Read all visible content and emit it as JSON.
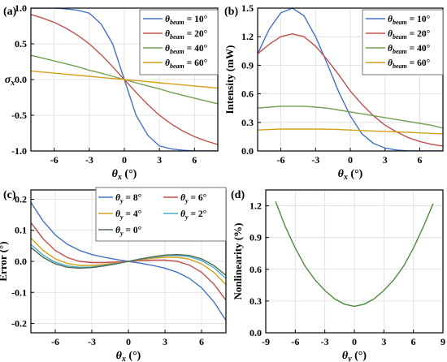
{
  "chart_data": [
    {
      "type": "line",
      "panel_label": "(a)",
      "xlabel_main": "θ",
      "xlabel_sub": "x",
      "xlabel_unit": " (°)",
      "ylabel_main": "σ",
      "ylabel_sub": "x",
      "xlim": [
        -8,
        8
      ],
      "ylim": [
        -1.0,
        1.0
      ],
      "xticks": [
        -6,
        -3,
        0,
        3,
        6
      ],
      "yticks": [
        -1.0,
        -0.5,
        0.0,
        0.5,
        1.0
      ],
      "ytick_labels": [
        "-1.0",
        "-0.5",
        "0.0",
        "0.5",
        "1.0"
      ],
      "grid": true,
      "legend_position": "top-right",
      "legend_prefix": "θ",
      "legend_sub": "beam",
      "series": [
        {
          "name": " = 10°",
          "color": "#4472c4",
          "x": [
            -8,
            -7,
            -6,
            -5,
            -4,
            -3,
            -2,
            -1,
            0,
            1,
            2,
            3,
            4,
            5,
            6,
            7,
            8
          ],
          "values": [
            1.0,
            1.0,
            1.0,
            0.99,
            0.97,
            0.93,
            0.78,
            0.5,
            0.0,
            -0.5,
            -0.78,
            -0.93,
            -0.97,
            -0.99,
            -1.0,
            -1.0,
            -1.0
          ]
        },
        {
          "name": " = 20°",
          "color": "#c0504d",
          "x": [
            -8,
            -7,
            -6,
            -5,
            -4,
            -3,
            -2,
            -1,
            0,
            1,
            2,
            3,
            4,
            5,
            6,
            7,
            8
          ],
          "values": [
            0.91,
            0.86,
            0.8,
            0.72,
            0.62,
            0.5,
            0.35,
            0.18,
            0.0,
            -0.18,
            -0.35,
            -0.5,
            -0.62,
            -0.72,
            -0.8,
            -0.86,
            -0.91
          ]
        },
        {
          "name": " = 40°",
          "color": "#70a050",
          "x": [
            -8,
            -7,
            -6,
            -5,
            -4,
            -3,
            -2,
            -1,
            0,
            1,
            2,
            3,
            4,
            5,
            6,
            7,
            8
          ],
          "values": [
            0.34,
            0.3,
            0.26,
            0.22,
            0.18,
            0.13,
            0.09,
            0.045,
            0.0,
            -0.045,
            -0.09,
            -0.13,
            -0.18,
            -0.22,
            -0.26,
            -0.3,
            -0.34
          ]
        },
        {
          "name": " = 60°",
          "color": "#d4a017",
          "x": [
            -8,
            -7,
            -6,
            -5,
            -4,
            -3,
            -2,
            -1,
            0,
            1,
            2,
            3,
            4,
            5,
            6,
            7,
            8
          ],
          "values": [
            0.12,
            0.105,
            0.09,
            0.075,
            0.06,
            0.045,
            0.03,
            0.015,
            0.0,
            -0.015,
            -0.03,
            -0.045,
            -0.06,
            -0.075,
            -0.09,
            -0.105,
            -0.12
          ]
        }
      ]
    },
    {
      "type": "line",
      "panel_label": "(b)",
      "xlabel_main": "θ",
      "xlabel_sub": "x",
      "xlabel_unit": " (°)",
      "ylabel": "Intensity (mW)",
      "xlim": [
        -8,
        8
      ],
      "ylim": [
        0.0,
        1.5
      ],
      "xticks": [
        -6,
        -3,
        0,
        3,
        6
      ],
      "yticks": [
        0.0,
        0.3,
        0.6,
        0.9,
        1.2,
        1.5
      ],
      "ytick_labels": [
        "0.0",
        "0.3",
        "0.6",
        "0.9",
        "1.2",
        "1.5"
      ],
      "grid": true,
      "legend_position": "top-right",
      "legend_prefix": "θ",
      "legend_sub": "beam",
      "series": [
        {
          "name": " = 10°",
          "color": "#4472c4",
          "x": [
            -8,
            -7,
            -6,
            -5,
            -4,
            -3,
            -2,
            -1,
            0,
            1,
            2,
            3,
            4,
            5,
            6,
            7,
            8
          ],
          "values": [
            1.02,
            1.28,
            1.45,
            1.5,
            1.42,
            1.2,
            0.92,
            0.62,
            0.37,
            0.18,
            0.08,
            0.03,
            0.01,
            0.0,
            0.0,
            0.0,
            0.0
          ]
        },
        {
          "name": " = 20°",
          "color": "#c0504d",
          "x": [
            -8,
            -7,
            -6,
            -5,
            -4,
            -3,
            -2,
            -1,
            0,
            1,
            2,
            3,
            4,
            5,
            6,
            7,
            8
          ],
          "values": [
            1.02,
            1.12,
            1.2,
            1.23,
            1.2,
            1.1,
            0.96,
            0.8,
            0.63,
            0.49,
            0.37,
            0.27,
            0.2,
            0.14,
            0.1,
            0.07,
            0.05
          ]
        },
        {
          "name": " = 40°",
          "color": "#70a050",
          "x": [
            -8,
            -7,
            -6,
            -5,
            -4,
            -3,
            -2,
            -1,
            0,
            1,
            2,
            3,
            4,
            5,
            6,
            7,
            8
          ],
          "values": [
            0.45,
            0.46,
            0.47,
            0.47,
            0.47,
            0.46,
            0.45,
            0.43,
            0.41,
            0.39,
            0.37,
            0.35,
            0.33,
            0.31,
            0.29,
            0.27,
            0.24
          ]
        },
        {
          "name": " = 60°",
          "color": "#d4a017",
          "x": [
            -8,
            -7,
            -6,
            -5,
            -4,
            -3,
            -2,
            -1,
            0,
            1,
            2,
            3,
            4,
            5,
            6,
            7,
            8
          ],
          "values": [
            0.22,
            0.225,
            0.23,
            0.23,
            0.23,
            0.23,
            0.228,
            0.225,
            0.22,
            0.215,
            0.21,
            0.205,
            0.2,
            0.195,
            0.19,
            0.185,
            0.18
          ]
        }
      ]
    },
    {
      "type": "line",
      "panel_label": "(c)",
      "xlabel_main": "θ",
      "xlabel_sub": "x",
      "xlabel_unit": " (°)",
      "ylabel": "Error (°)",
      "xlim": [
        -8,
        8
      ],
      "ylim": [
        -0.23,
        0.23
      ],
      "xticks": [
        -6,
        -3,
        0,
        3,
        6
      ],
      "yticks": [
        -0.2,
        -0.1,
        0.0,
        0.1,
        0.2
      ],
      "ytick_labels": [
        "-0.2",
        "-0.1",
        "0.0",
        "0.1",
        "0.2"
      ],
      "grid": true,
      "legend_position": "top",
      "legend_prefix": "θ",
      "legend_sub": "y",
      "series": [
        {
          "name": " = 8°",
          "color": "#4472c4",
          "x": [
            -8,
            -7,
            -6,
            -5,
            -4,
            -3,
            -2,
            -1,
            0,
            1,
            2,
            3,
            4,
            5,
            6,
            7,
            8
          ],
          "values": [
            0.19,
            0.13,
            0.085,
            0.055,
            0.035,
            0.022,
            0.013,
            0.006,
            0.0,
            -0.006,
            -0.013,
            -0.022,
            -0.035,
            -0.055,
            -0.085,
            -0.13,
            -0.19
          ]
        },
        {
          "name": " = 6°",
          "color": "#c0504d",
          "x": [
            -8,
            -7,
            -6,
            -5,
            -4,
            -3,
            -2,
            -1,
            0,
            1,
            2,
            3,
            4,
            5,
            6,
            7,
            8
          ],
          "values": [
            0.125,
            0.073,
            0.035,
            0.012,
            0.0,
            -0.004,
            -0.004,
            -0.002,
            0.0,
            0.002,
            0.004,
            0.004,
            0.0,
            -0.012,
            -0.035,
            -0.073,
            -0.125
          ]
        },
        {
          "name": " = 4°",
          "color": "#d4a017",
          "x": [
            -8,
            -7,
            -6,
            -5,
            -4,
            -3,
            -2,
            -1,
            0,
            1,
            2,
            3,
            4,
            5,
            6,
            7,
            8
          ],
          "values": [
            0.075,
            0.035,
            0.008,
            -0.007,
            -0.013,
            -0.013,
            -0.01,
            -0.005,
            0.0,
            0.005,
            0.01,
            0.013,
            0.013,
            0.007,
            -0.008,
            -0.035,
            -0.075
          ]
        },
        {
          "name": " = 2°",
          "color": "#4bacc6",
          "x": [
            -8,
            -7,
            -6,
            -5,
            -4,
            -3,
            -2,
            -1,
            0,
            1,
            2,
            3,
            4,
            5,
            6,
            7,
            8
          ],
          "values": [
            0.055,
            0.02,
            -0.003,
            -0.015,
            -0.019,
            -0.018,
            -0.013,
            -0.007,
            0.0,
            0.007,
            0.013,
            0.018,
            0.019,
            0.015,
            0.003,
            -0.02,
            -0.055
          ]
        },
        {
          "name": " = 0°",
          "color": "#506850",
          "x": [
            -8,
            -7,
            -6,
            -5,
            -4,
            -3,
            -2,
            -1,
            0,
            1,
            2,
            3,
            4,
            5,
            6,
            7,
            8
          ],
          "values": [
            0.045,
            0.013,
            -0.008,
            -0.019,
            -0.022,
            -0.02,
            -0.015,
            -0.008,
            0.0,
            0.008,
            0.015,
            0.02,
            0.022,
            0.019,
            0.008,
            -0.013,
            -0.045
          ]
        }
      ]
    },
    {
      "type": "line",
      "panel_label": "(d)",
      "xlabel_main": "θ",
      "xlabel_sub": "y",
      "xlabel_unit": " (°)",
      "ylabel": "Nonlinearity (%)",
      "xlim": [
        -9,
        9
      ],
      "ylim": [
        0.0,
        1.35
      ],
      "xticks": [
        -9,
        -6,
        -3,
        0,
        3,
        6,
        9
      ],
      "yticks": [
        0.0,
        0.3,
        0.6,
        0.9,
        1.2
      ],
      "ytick_labels": [
        "0.0",
        "0.3",
        "0.6",
        "0.9",
        "1.2"
      ],
      "grid": true,
      "legend_position": "none",
      "series": [
        {
          "name": "",
          "color": "#4e8a3c",
          "x": [
            -8,
            -7,
            -6,
            -5,
            -4,
            -3,
            -2,
            -1,
            0,
            1,
            2,
            3,
            4,
            5,
            6,
            7,
            8
          ],
          "values": [
            1.24,
            1.0,
            0.8,
            0.63,
            0.5,
            0.4,
            0.32,
            0.27,
            0.25,
            0.27,
            0.32,
            0.4,
            0.5,
            0.63,
            0.8,
            1.0,
            1.22
          ]
        }
      ]
    }
  ]
}
